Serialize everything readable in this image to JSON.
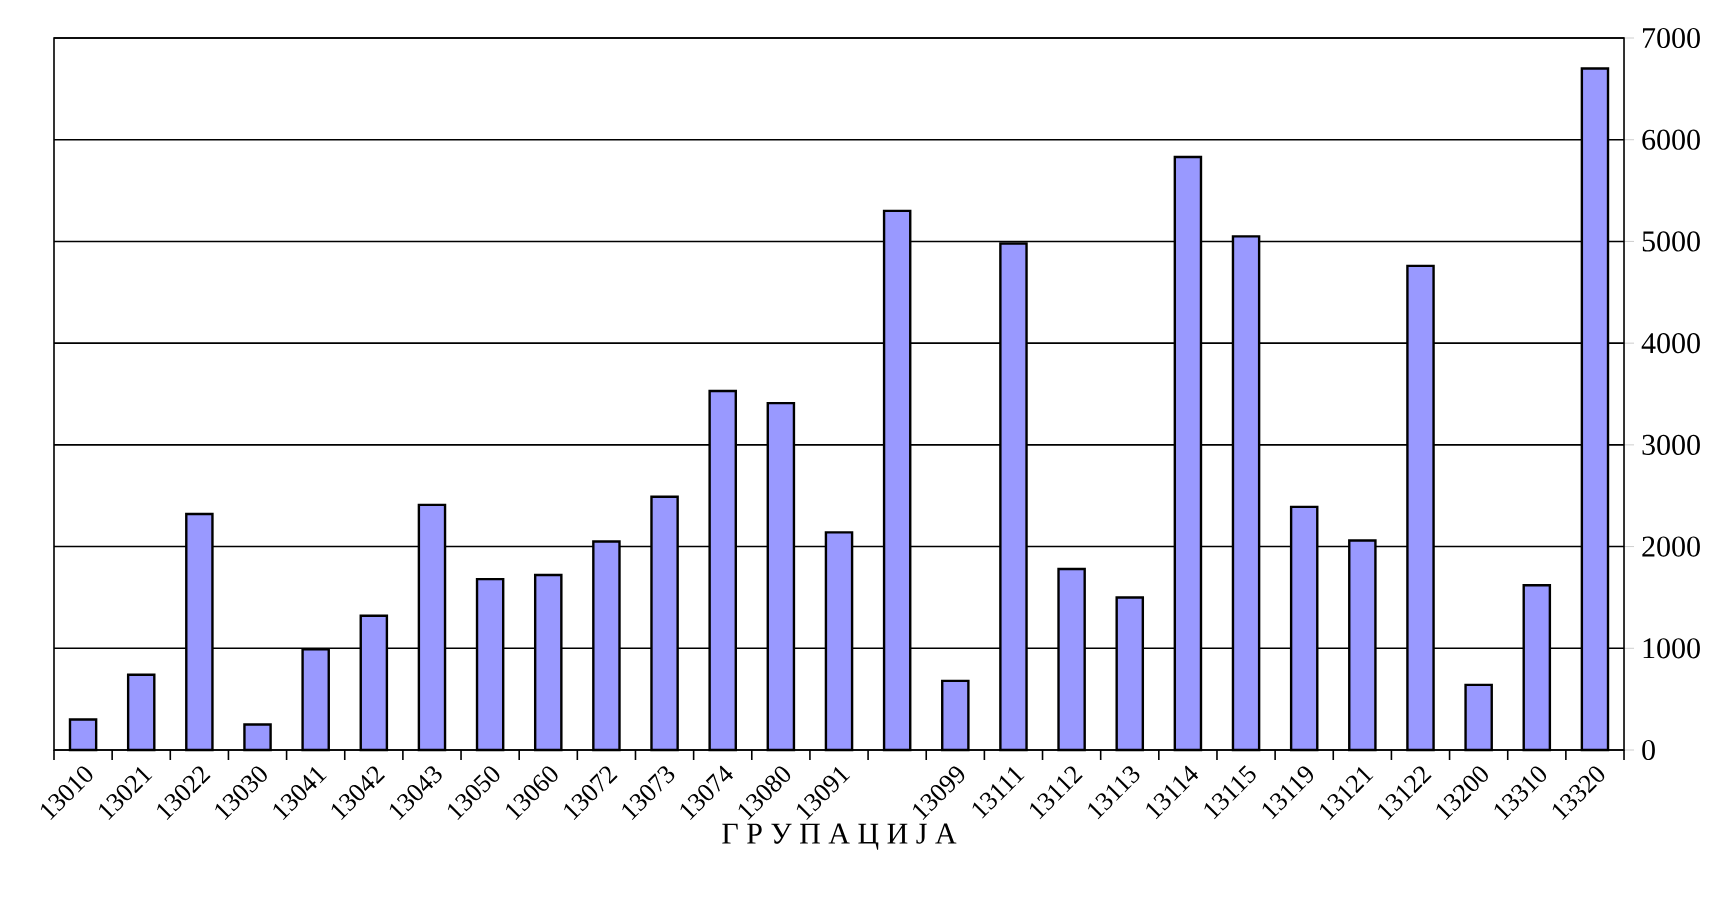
{
  "chart_data": {
    "type": "bar",
    "xlabel": "Г Р У П А Ц И Ј А",
    "categories": [
      "13010",
      "13021",
      "13022",
      "13030",
      "13041",
      "13042",
      "13043",
      "13050",
      "13060",
      "13072",
      "13073",
      "13074",
      "13080",
      "13091",
      null,
      "13099",
      "13111",
      "13112",
      "13113",
      "13114",
      "13115",
      "13119",
      "13121",
      "13122",
      "13200",
      "13310",
      "13320"
    ],
    "values": [
      300,
      740,
      2320,
      250,
      990,
      1320,
      2410,
      1680,
      1720,
      2050,
      2490,
      3530,
      3410,
      2140,
      5300,
      680,
      4980,
      1780,
      1500,
      5830,
      5050,
      2390,
      2060,
      4760,
      640,
      1620,
      6700
    ],
    "color": "#9999ff",
    "ylim": [
      0,
      7000
    ],
    "yticks": [
      0,
      1000,
      2000,
      3000,
      4000,
      5000,
      6000,
      7000
    ],
    "grid": "y"
  }
}
